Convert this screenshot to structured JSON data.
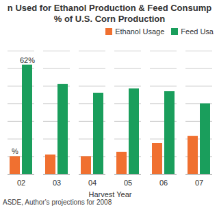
{
  "chart_data": {
    "type": "bar",
    "title": "n Used for Ethanol Production & Feed Consump",
    "subtitle": "% of U.S. Corn Production",
    "xlabel": "Harvest Year",
    "caption": "ASDE, Author's projections for 2008",
    "categories": [
      "02",
      "03",
      "04",
      "05",
      "06",
      "07"
    ],
    "series": [
      {
        "name": "Ethanol Usage",
        "color": "#f07030",
        "values": [
          10,
          11,
          10,
          12.5,
          17.5,
          21.5
        ],
        "value_labels": [
          "%",
          null,
          null,
          null,
          null,
          null
        ]
      },
      {
        "name": "Feed Usa",
        "color": "#1a9e5c",
        "values": [
          62,
          51,
          46,
          48.5,
          47,
          40
        ],
        "value_labels": [
          "62%",
          null,
          null,
          null,
          null,
          null
        ]
      }
    ],
    "ylim": [
      0,
      70
    ],
    "yticks": [
      0,
      10,
      20,
      30,
      40,
      50,
      60,
      70
    ],
    "grid": true,
    "legend": "top-right",
    "tick_labels": "x"
  }
}
